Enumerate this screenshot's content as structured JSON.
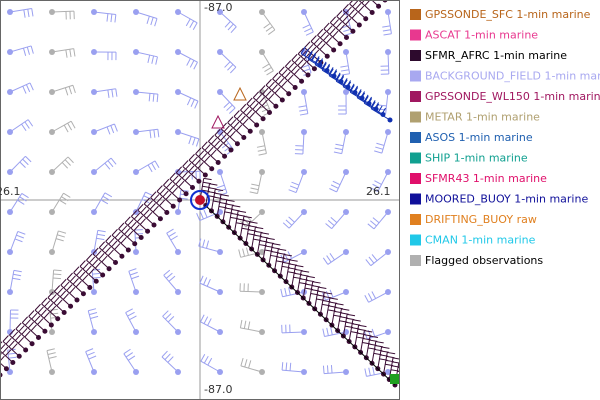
{
  "map": {
    "axis_labels": {
      "lon_top": "-87.0",
      "lon_bottom": "-87.0",
      "lat_left": "26.1",
      "lat_right": "26.1"
    },
    "legend": [
      {
        "label": "GPSSONDE_SFC 1-min marine",
        "color": "#b8651b",
        "text_color": "#b8651b"
      },
      {
        "label": "ASCAT 1-min marine",
        "color": "#e8388f",
        "text_color": "#e8388f"
      },
      {
        "label": "SFMR_AFRC 1-min marine",
        "color": "#2d0a2d",
        "text_color": "#000000"
      },
      {
        "label": "BACKGROUND_FIELD 1-min marine",
        "color": "#a8a8f0",
        "text_color": "#a8a8f0"
      },
      {
        "label": "GPSSONDE_WL150 1-min marine",
        "color": "#a01860",
        "text_color": "#a01860"
      },
      {
        "label": "METAR 1-min marine",
        "color": "#b0a070",
        "text_color": "#b0a070"
      },
      {
        "label": "ASOS 1-min marine",
        "color": "#2060b0",
        "text_color": "#2060b0"
      },
      {
        "label": "SHIP 1-min marine",
        "color": "#10a090",
        "text_color": "#10a090"
      },
      {
        "label": "SFMR43 1-min marine",
        "color": "#e0106b",
        "text_color": "#e0106b"
      },
      {
        "label": "MOORED_BUOY 1-min marine",
        "color": "#10109a",
        "text_color": "#10109a"
      },
      {
        "label": "DRIFTING_BUOY raw",
        "color": "#e08020",
        "text_color": "#e08020"
      },
      {
        "label": "CMAN 1-min marine",
        "color": "#20c8e8",
        "text_color": "#20c8e8"
      },
      {
        "label": "Flagged observations",
        "color": "#b0b0b0",
        "text_color": "#000000"
      }
    ]
  }
}
